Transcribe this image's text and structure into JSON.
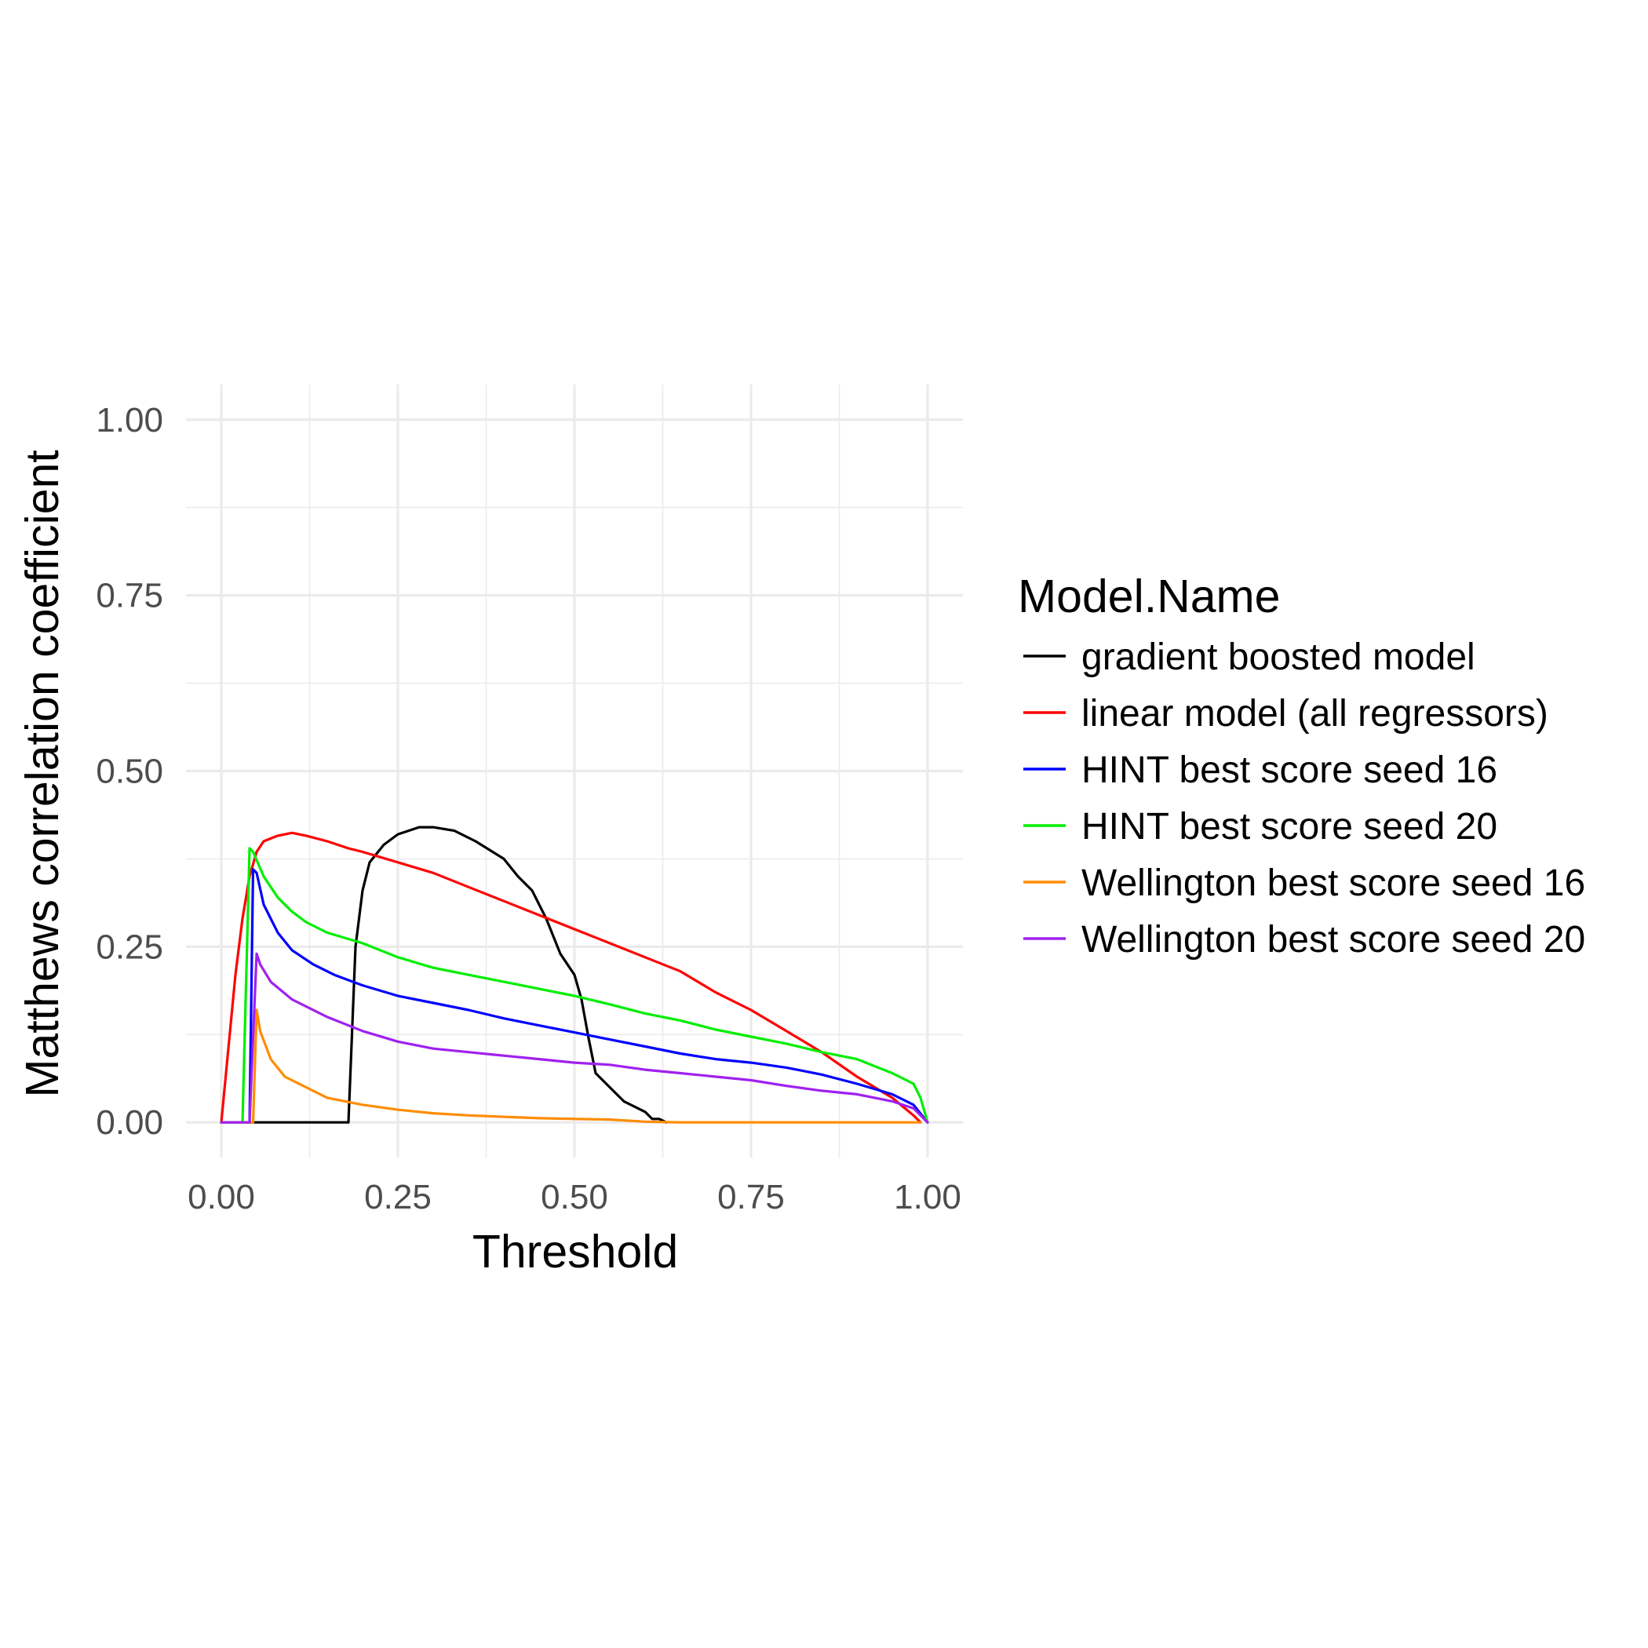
{
  "chart_data": {
    "type": "line",
    "xlabel": "Threshold",
    "ylabel": "Matthews correlation coefficient",
    "xlim": [
      -0.05,
      1.05
    ],
    "ylim": [
      -0.05,
      1.05
    ],
    "x_ticks": [
      0.0,
      0.25,
      0.5,
      0.75,
      1.0
    ],
    "y_ticks": [
      0.0,
      0.25,
      0.5,
      0.75,
      1.0
    ],
    "x_tick_labels": [
      "0.00",
      "0.25",
      "0.50",
      "0.75",
      "1.00"
    ],
    "y_tick_labels": [
      "0.00",
      "0.25",
      "0.50",
      "0.75",
      "1.00"
    ],
    "grid": true,
    "legend": {
      "title": "Model.Name",
      "position": "right"
    },
    "series": [
      {
        "name": "gradient boosted model",
        "color": "#000000",
        "points": [
          [
            0.04,
            0.0
          ],
          [
            0.18,
            0.0
          ],
          [
            0.19,
            0.25
          ],
          [
            0.2,
            0.33
          ],
          [
            0.21,
            0.37
          ],
          [
            0.23,
            0.395
          ],
          [
            0.25,
            0.41
          ],
          [
            0.28,
            0.42
          ],
          [
            0.3,
            0.42
          ],
          [
            0.33,
            0.415
          ],
          [
            0.36,
            0.4
          ],
          [
            0.4,
            0.375
          ],
          [
            0.42,
            0.35
          ],
          [
            0.44,
            0.33
          ],
          [
            0.46,
            0.29
          ],
          [
            0.48,
            0.24
          ],
          [
            0.5,
            0.21
          ],
          [
            0.51,
            0.175
          ],
          [
            0.52,
            0.12
          ],
          [
            0.53,
            0.07
          ],
          [
            0.55,
            0.05
          ],
          [
            0.57,
            0.03
          ],
          [
            0.6,
            0.015
          ],
          [
            0.61,
            0.005
          ],
          [
            0.62,
            0.005
          ],
          [
            0.63,
            0.0
          ]
        ]
      },
      {
        "name": "linear model (all regressors)",
        "color": "#ff0000",
        "points": [
          [
            0.0,
            0.0
          ],
          [
            0.02,
            0.21
          ],
          [
            0.03,
            0.29
          ],
          [
            0.04,
            0.35
          ],
          [
            0.05,
            0.385
          ],
          [
            0.06,
            0.4
          ],
          [
            0.08,
            0.408
          ],
          [
            0.1,
            0.412
          ],
          [
            0.12,
            0.408
          ],
          [
            0.15,
            0.4
          ],
          [
            0.18,
            0.39
          ],
          [
            0.2,
            0.385
          ],
          [
            0.25,
            0.37
          ],
          [
            0.3,
            0.355
          ],
          [
            0.35,
            0.335
          ],
          [
            0.4,
            0.315
          ],
          [
            0.45,
            0.295
          ],
          [
            0.5,
            0.275
          ],
          [
            0.55,
            0.255
          ],
          [
            0.6,
            0.235
          ],
          [
            0.65,
            0.215
          ],
          [
            0.7,
            0.185
          ],
          [
            0.75,
            0.16
          ],
          [
            0.8,
            0.13
          ],
          [
            0.85,
            0.1
          ],
          [
            0.9,
            0.065
          ],
          [
            0.95,
            0.035
          ],
          [
            0.98,
            0.01
          ],
          [
            0.99,
            0.0
          ]
        ]
      },
      {
        "name": "HINT best score seed 16",
        "color": "#0000ff",
        "points": [
          [
            0.0,
            0.0
          ],
          [
            0.04,
            0.0
          ],
          [
            0.045,
            0.36
          ],
          [
            0.05,
            0.355
          ],
          [
            0.06,
            0.31
          ],
          [
            0.08,
            0.27
          ],
          [
            0.1,
            0.245
          ],
          [
            0.13,
            0.225
          ],
          [
            0.16,
            0.21
          ],
          [
            0.2,
            0.195
          ],
          [
            0.25,
            0.18
          ],
          [
            0.3,
            0.17
          ],
          [
            0.35,
            0.16
          ],
          [
            0.4,
            0.148
          ],
          [
            0.45,
            0.138
          ],
          [
            0.5,
            0.128
          ],
          [
            0.55,
            0.118
          ],
          [
            0.6,
            0.108
          ],
          [
            0.65,
            0.098
          ],
          [
            0.7,
            0.09
          ],
          [
            0.75,
            0.085
          ],
          [
            0.8,
            0.078
          ],
          [
            0.85,
            0.068
          ],
          [
            0.9,
            0.055
          ],
          [
            0.95,
            0.04
          ],
          [
            0.98,
            0.025
          ],
          [
            1.0,
            0.0
          ]
        ]
      },
      {
        "name": "HINT best score seed 20",
        "color": "#00ee00",
        "points": [
          [
            0.0,
            0.0
          ],
          [
            0.03,
            0.0
          ],
          [
            0.04,
            0.39
          ],
          [
            0.045,
            0.385
          ],
          [
            0.06,
            0.35
          ],
          [
            0.08,
            0.32
          ],
          [
            0.1,
            0.3
          ],
          [
            0.12,
            0.285
          ],
          [
            0.15,
            0.27
          ],
          [
            0.2,
            0.255
          ],
          [
            0.25,
            0.235
          ],
          [
            0.3,
            0.22
          ],
          [
            0.35,
            0.21
          ],
          [
            0.4,
            0.2
          ],
          [
            0.45,
            0.19
          ],
          [
            0.5,
            0.18
          ],
          [
            0.55,
            0.168
          ],
          [
            0.6,
            0.155
          ],
          [
            0.65,
            0.145
          ],
          [
            0.7,
            0.132
          ],
          [
            0.75,
            0.122
          ],
          [
            0.8,
            0.112
          ],
          [
            0.85,
            0.1
          ],
          [
            0.9,
            0.09
          ],
          [
            0.95,
            0.07
          ],
          [
            0.98,
            0.055
          ],
          [
            0.99,
            0.035
          ],
          [
            1.0,
            0.0
          ]
        ]
      },
      {
        "name": "Wellington best score seed 16",
        "color": "#ff8c00",
        "points": [
          [
            0.0,
            0.0
          ],
          [
            0.045,
            0.0
          ],
          [
            0.05,
            0.16
          ],
          [
            0.055,
            0.13
          ],
          [
            0.07,
            0.09
          ],
          [
            0.09,
            0.065
          ],
          [
            0.12,
            0.05
          ],
          [
            0.15,
            0.035
          ],
          [
            0.2,
            0.025
          ],
          [
            0.25,
            0.018
          ],
          [
            0.3,
            0.013
          ],
          [
            0.35,
            0.01
          ],
          [
            0.4,
            0.008
          ],
          [
            0.45,
            0.006
          ],
          [
            0.5,
            0.005
          ],
          [
            0.55,
            0.004
          ],
          [
            0.6,
            0.001
          ],
          [
            0.65,
            0.0
          ],
          [
            0.99,
            0.0
          ]
        ]
      },
      {
        "name": "Wellington best score seed 20",
        "color": "#a020f0",
        "points": [
          [
            0.0,
            0.0
          ],
          [
            0.04,
            0.0
          ],
          [
            0.05,
            0.24
          ],
          [
            0.055,
            0.225
          ],
          [
            0.07,
            0.2
          ],
          [
            0.1,
            0.175
          ],
          [
            0.15,
            0.15
          ],
          [
            0.2,
            0.13
          ],
          [
            0.25,
            0.115
          ],
          [
            0.3,
            0.105
          ],
          [
            0.35,
            0.1
          ],
          [
            0.4,
            0.095
          ],
          [
            0.45,
            0.09
          ],
          [
            0.5,
            0.085
          ],
          [
            0.55,
            0.082
          ],
          [
            0.6,
            0.075
          ],
          [
            0.65,
            0.07
          ],
          [
            0.7,
            0.065
          ],
          [
            0.75,
            0.06
          ],
          [
            0.8,
            0.052
          ],
          [
            0.85,
            0.045
          ],
          [
            0.9,
            0.04
          ],
          [
            0.95,
            0.03
          ],
          [
            0.98,
            0.02
          ],
          [
            1.0,
            0.0
          ]
        ]
      }
    ]
  }
}
